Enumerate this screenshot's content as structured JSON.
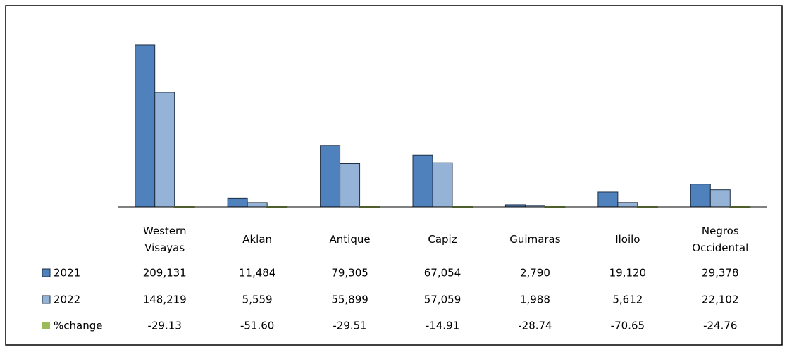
{
  "chart_data": {
    "type": "bar",
    "categories": [
      "Western Visayas",
      "Aklan",
      "Antique",
      "Capiz",
      "Guimaras",
      "Iloilo",
      "Negros Occidental"
    ],
    "series": [
      {
        "name": "2021",
        "color": "#4f81bd",
        "values": [
          209131,
          11484,
          79305,
          67054,
          2790,
          19120,
          29378
        ],
        "value_labels": [
          "209,131",
          "11,484",
          "79,305",
          "67,054",
          "2,790",
          "19,120",
          "29,378"
        ]
      },
      {
        "name": "2022",
        "color": "#95b3d7",
        "values": [
          148219,
          5559,
          55899,
          57059,
          1988,
          5612,
          22102
        ],
        "value_labels": [
          "148,219",
          "5,559",
          "55,899",
          "57,059",
          "1,988",
          "5,612",
          "22,102"
        ]
      },
      {
        "name": "%change",
        "color": "#9bbb59",
        "values": [
          -29.13,
          -51.6,
          -29.51,
          -14.91,
          -28.74,
          -70.65,
          -24.76
        ],
        "value_labels": [
          "-29.13",
          "-51.60",
          "-29.51",
          "-14.91",
          "-28.74",
          "-70.65",
          "-24.76"
        ]
      }
    ],
    "ylim": [
      0,
      220000
    ]
  }
}
